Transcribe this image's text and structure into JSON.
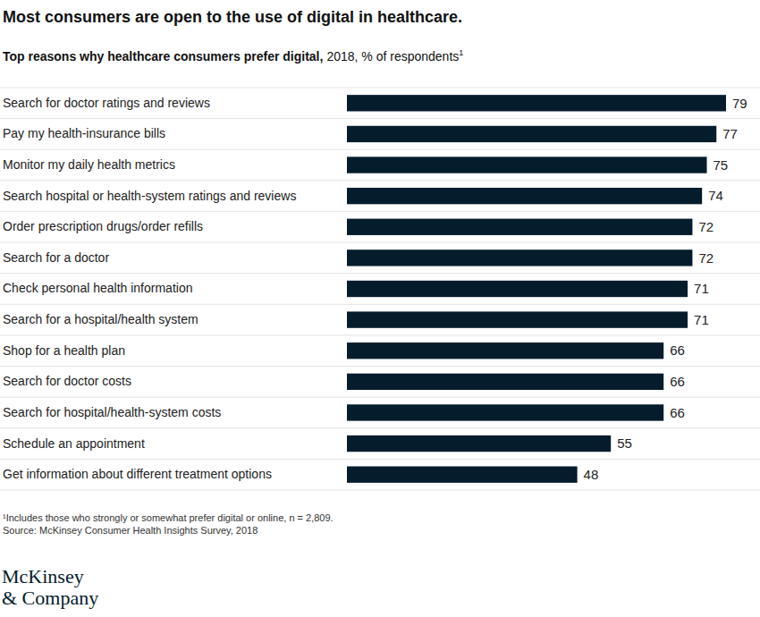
{
  "chart_data": {
    "type": "bar",
    "orientation": "horizontal",
    "title": "Most consumers are open to the use of digital in healthcare.",
    "subtitle": "Top reasons why healthcare consumers prefer digital,",
    "subtitle_detail": "2018, % of respondents",
    "footnote_marker": "1",
    "categories": [
      "Search for doctor ratings and reviews",
      "Pay my health-insurance bills",
      "Monitor my daily health metrics",
      "Search hospital or health-system ratings and reviews",
      "Order prescription drugs/order refills",
      "Search for a doctor",
      "Check personal health information",
      "Search for a hospital/health system",
      "Shop for a health plan",
      "Search for doctor costs",
      "Search for hospital/health-system costs",
      "Schedule an appointment",
      "Get information about different treatment options"
    ],
    "values": [
      79,
      77,
      75,
      74,
      72,
      72,
      71,
      71,
      66,
      66,
      66,
      55,
      48
    ],
    "color": "#051c2c",
    "xlim": [
      0,
      79
    ],
    "data_labels": true,
    "tick_labels": "y",
    "footnotes": [
      "¹Includes those who strongly or somewhat prefer digital or online, n = 2,809.",
      "Source: McKinsey Consumer Health Insights Survey, 2018"
    ],
    "logo": [
      "McKinsey",
      "& Company"
    ]
  }
}
